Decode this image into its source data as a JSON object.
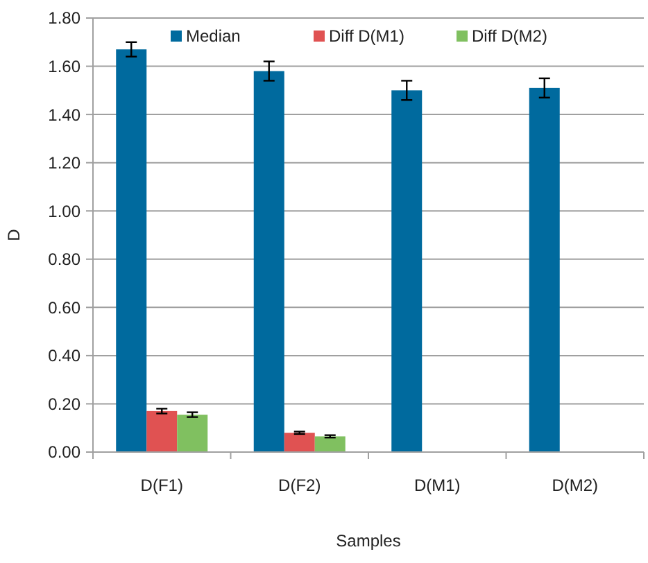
{
  "chart_data": {
    "type": "bar",
    "xlabel": "Samples",
    "ylabel": "D",
    "categories": [
      "D(F1)",
      "D(F2)",
      "D(M1)",
      "D(M2)"
    ],
    "series": [
      {
        "name": "Median",
        "color": "#006a9e",
        "values": [
          1.67,
          1.58,
          1.5,
          1.51
        ],
        "errors": [
          0.03,
          0.04,
          0.04,
          0.04
        ]
      },
      {
        "name": "Diff D(M1)",
        "color": "#e05252",
        "values": [
          0.17,
          0.08,
          null,
          null
        ],
        "errors": [
          0.01,
          0.005,
          null,
          null
        ]
      },
      {
        "name": "Diff D(M2)",
        "color": "#80c060",
        "values": [
          0.155,
          0.065,
          null,
          null
        ],
        "errors": [
          0.01,
          0.005,
          null,
          null
        ]
      }
    ],
    "ylim": [
      0,
      1.8
    ],
    "yticks": [
      {
        "value": 0,
        "label": "0.00"
      },
      {
        "value": 0.2,
        "label": "0.20"
      },
      {
        "value": 0.4,
        "label": "0.40"
      },
      {
        "value": 0.6,
        "label": "0.60"
      },
      {
        "value": 0.8,
        "label": "0.80"
      },
      {
        "value": 1,
        "label": "1.00"
      },
      {
        "value": 1.2,
        "label": "1.20"
      },
      {
        "value": 1.4,
        "label": "1.40"
      },
      {
        "value": 1.6,
        "label": "1.60"
      },
      {
        "value": 1.8,
        "label": "1.80"
      }
    ],
    "grid": "y",
    "legend": "top"
  }
}
